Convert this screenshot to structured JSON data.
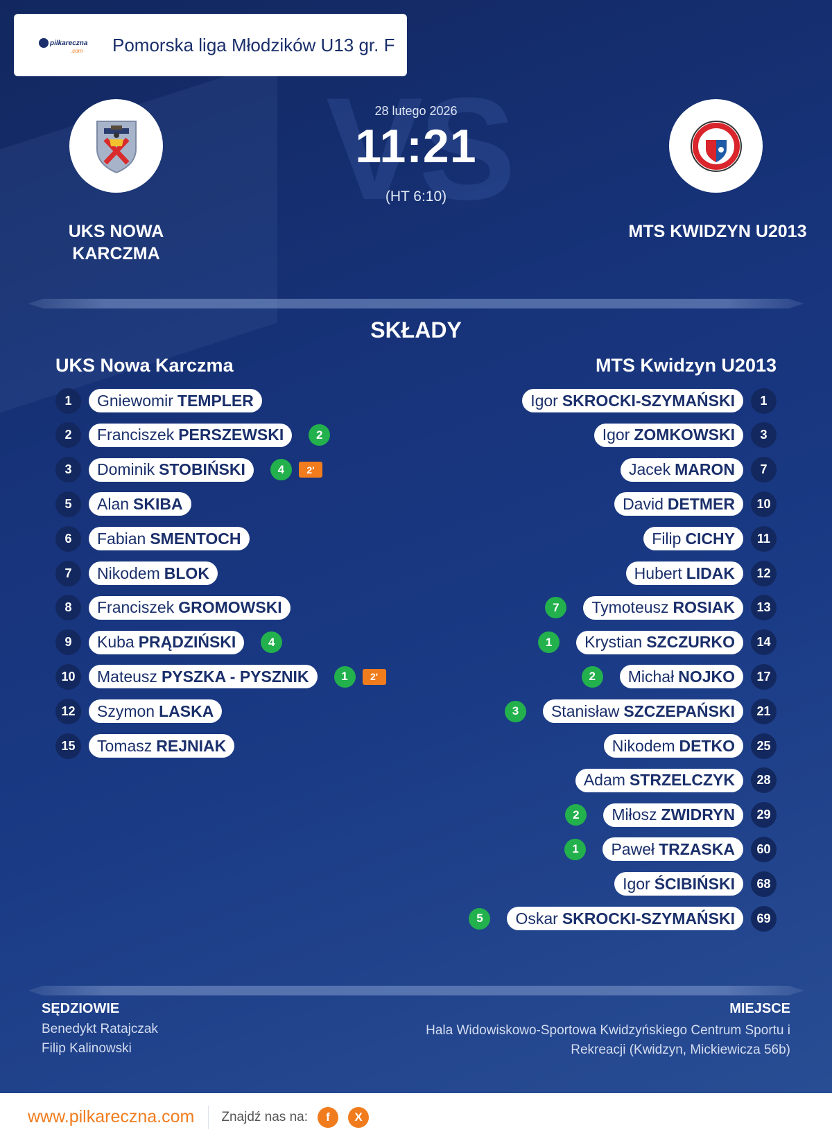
{
  "league": {
    "logo_text": "pilkareczna",
    "logo_sub": ".com",
    "name": "Pomorska liga Młodzików U13 gr. F"
  },
  "match": {
    "date": "28 lutego 2026",
    "score": "11:21",
    "halftime": "(HT 6:10)",
    "vs_text": "VS"
  },
  "home": {
    "name": "UKS NOWA KARCZMA",
    "crest_icon": "team-crest-shield-icon",
    "lineup_title": "UKS Nowa Karczma"
  },
  "away": {
    "name": "MTS KWIDZYN U2013",
    "crest_icon": "team-crest-round-icon",
    "lineup_title": "MTS Kwidzyn U2013"
  },
  "lineups_title": "SKŁADY",
  "home_players": [
    {
      "num": "1",
      "first": "Gniewomir",
      "last": "TEMPLER",
      "goals": "",
      "pen": ""
    },
    {
      "num": "2",
      "first": "Franciszek",
      "last": "PERSZEWSKI",
      "goals": "2",
      "pen": ""
    },
    {
      "num": "3",
      "first": "Dominik",
      "last": "STOBIŃSKI",
      "goals": "4",
      "pen": "2'"
    },
    {
      "num": "5",
      "first": "Alan",
      "last": "SKIBA",
      "goals": "",
      "pen": ""
    },
    {
      "num": "6",
      "first": "Fabian",
      "last": "SMENTOCH",
      "goals": "",
      "pen": ""
    },
    {
      "num": "7",
      "first": "Nikodem",
      "last": "BLOK",
      "goals": "",
      "pen": ""
    },
    {
      "num": "8",
      "first": "Franciszek",
      "last": "GROMOWSKI",
      "goals": "",
      "pen": ""
    },
    {
      "num": "9",
      "first": "Kuba",
      "last": "PRĄDZIŃSKI",
      "goals": "4",
      "pen": ""
    },
    {
      "num": "10",
      "first": "Mateusz",
      "last": "PYSZKA - PYSZNIK",
      "goals": "1",
      "pen": "2'"
    },
    {
      "num": "12",
      "first": "Szymon",
      "last": "LASKA",
      "goals": "",
      "pen": ""
    },
    {
      "num": "15",
      "first": "Tomasz",
      "last": "REJNIAK",
      "goals": "",
      "pen": ""
    }
  ],
  "away_players": [
    {
      "num": "1",
      "first": "Igor",
      "last": "SKROCKI-SZYMAŃSKI",
      "goals": ""
    },
    {
      "num": "3",
      "first": "Igor",
      "last": "ZOMKOWSKI",
      "goals": ""
    },
    {
      "num": "7",
      "first": "Jacek",
      "last": "MARON",
      "goals": ""
    },
    {
      "num": "10",
      "first": "David",
      "last": "DETMER",
      "goals": ""
    },
    {
      "num": "11",
      "first": "Filip",
      "last": "CICHY",
      "goals": ""
    },
    {
      "num": "12",
      "first": "Hubert",
      "last": "LIDAK",
      "goals": ""
    },
    {
      "num": "13",
      "first": "Tymoteusz",
      "last": "ROSIAK",
      "goals": "7"
    },
    {
      "num": "14",
      "first": "Krystian",
      "last": "SZCZURKO",
      "goals": "1"
    },
    {
      "num": "17",
      "first": "Michał",
      "last": "NOJKO",
      "goals": "2"
    },
    {
      "num": "21",
      "first": "Stanisław",
      "last": "SZCZEPAŃSKI",
      "goals": "3"
    },
    {
      "num": "25",
      "first": "Nikodem",
      "last": "DETKO",
      "goals": ""
    },
    {
      "num": "28",
      "first": "Adam",
      "last": "STRZELCZYK",
      "goals": ""
    },
    {
      "num": "29",
      "first": "Miłosz",
      "last": "ZWIDRYN",
      "goals": "2"
    },
    {
      "num": "60",
      "first": "Paweł",
      "last": "TRZASKA",
      "goals": "1"
    },
    {
      "num": "68",
      "first": "Igor",
      "last": "ŚCIBIŃSKI",
      "goals": ""
    },
    {
      "num": "69",
      "first": "Oskar",
      "last": "SKROCKI-SZYMAŃSKI",
      "goals": "5"
    }
  ],
  "referees": {
    "title": "SĘDZIOWIE",
    "names": [
      "Benedykt Ratajczak",
      "Filip Kalinowski"
    ]
  },
  "venue": {
    "title": "MIEJSCE",
    "text": "Hala Widowiskowo-Sportowa Kwidzyńskiego Centrum Sportu i Rekreacji (Kwidzyn, Mickiewicza 56b)"
  },
  "footer": {
    "site": "www.pilkareczna.com",
    "find_us": "Znajdź nas na:",
    "facebook": "f",
    "x": "X"
  },
  "colors": {
    "accent": "#f07c1e",
    "goal": "#22b14c",
    "navy": "#13285f"
  }
}
